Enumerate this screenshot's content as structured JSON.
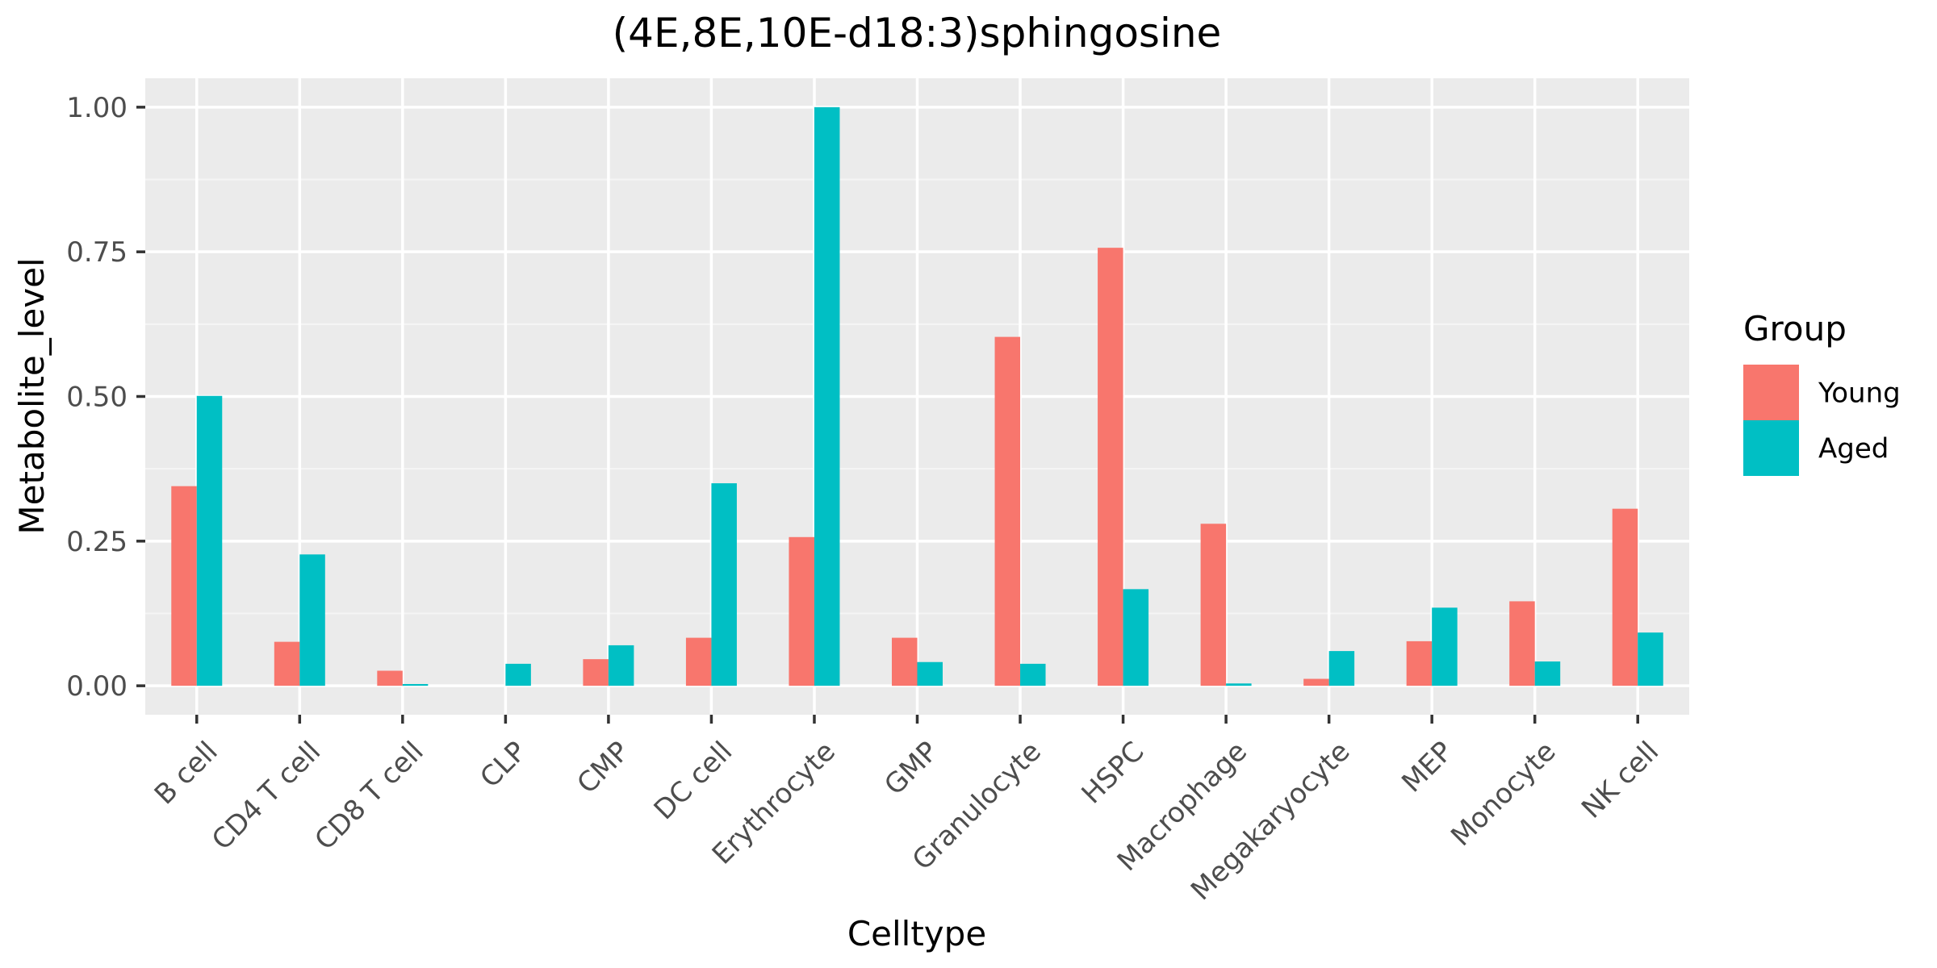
{
  "chart_data": {
    "type": "bar",
    "title": "(4E,8E,10E-d18:3)sphingosine",
    "xlabel": "Celltype",
    "ylabel": "Metabolite_level",
    "ylim": [
      -0.05,
      1.05
    ],
    "yticks": [
      0.0,
      0.25,
      0.5,
      0.75,
      1.0
    ],
    "ytick_labels": [
      "0.00",
      "0.25",
      "0.50",
      "0.75",
      "1.00"
    ],
    "grid": true,
    "legend": {
      "title": "Group",
      "position": "right"
    },
    "categories": [
      "B cell",
      "CD4 T cell",
      "CD8 T cell",
      "CLP",
      "CMP",
      "DC cell",
      "Erythrocyte",
      "GMP",
      "Granulocyte",
      "HSPC",
      "Macrophage",
      "Megakaryocyte",
      "MEP",
      "Monocyte",
      "NK cell"
    ],
    "series": [
      {
        "name": "Young",
        "color": "#F8766D",
        "values": [
          0.345,
          0.076,
          0.026,
          0.0,
          0.046,
          0.083,
          0.257,
          0.083,
          0.603,
          0.757,
          0.28,
          0.012,
          0.077,
          0.146,
          0.306
        ]
      },
      {
        "name": "Aged",
        "color": "#00BFC4",
        "values": [
          0.501,
          0.227,
          0.003,
          0.038,
          0.07,
          0.35,
          1.0,
          0.041,
          0.038,
          0.167,
          0.004,
          0.06,
          0.135,
          0.042,
          0.092
        ]
      }
    ]
  },
  "colors": {
    "panel_background": "#EBEBEB",
    "grid_major": "#FFFFFF",
    "grid_minor": "#F5F5F5",
    "tick_text": "#4D4D4D",
    "text": "#000000"
  }
}
